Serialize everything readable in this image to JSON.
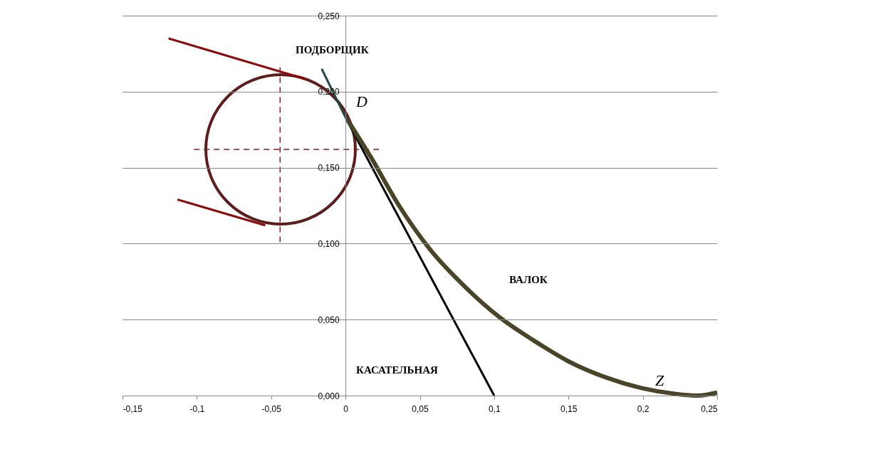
{
  "chart_data": {
    "type": "line",
    "xlim": [
      -0.15,
      0.25
    ],
    "ylim": [
      0,
      0.25
    ],
    "xticks": [
      {
        "value": -0.15,
        "label": "-0,15"
      },
      {
        "value": -0.1,
        "label": "-0,1"
      },
      {
        "value": -0.05,
        "label": "-0,05"
      },
      0,
      {
        "value": 0.05,
        "label": "0,05"
      },
      {
        "value": 0.1,
        "label": "0,1"
      },
      {
        "value": 0.15,
        "label": "0,15"
      },
      {
        "value": 0.2,
        "label": "0,2"
      },
      {
        "value": 0.25,
        "label": "0,25"
      }
    ],
    "yticks": [
      {
        "value": 0,
        "label": "0,000"
      },
      {
        "value": 0.05,
        "label": "0,050"
      },
      {
        "value": 0.1,
        "label": "0,100"
      },
      {
        "value": 0.15,
        "label": "0,150"
      },
      {
        "value": 0.2,
        "label": "0,200"
      },
      {
        "value": 0.25,
        "label": "0,250"
      }
    ],
    "grid": "y",
    "series": [
      {
        "color": "#8b0a0a",
        "x": [
          -0.119,
          -0.026
        ],
        "values": [
          0.235,
          0.208
        ]
      },
      {
        "color": "#8b0a0a",
        "x": [
          -0.113,
          -0.054
        ],
        "values": [
          0.129,
          0.112
        ]
      },
      {
        "color": "#8b1a1a",
        "line_style": "dashed",
        "x": [
          -0.102,
          0.023
        ],
        "values": [
          0.162,
          0.162
        ]
      },
      {
        "color": "#8b1a1a",
        "line_style": "dashed",
        "x": [
          -0.044,
          -0.044
        ],
        "values": [
          0.216,
          0.101
        ]
      },
      {
        "color": "#000000",
        "x": [
          0.001,
          0.1
        ],
        "values": [
          0.181,
          0
        ]
      },
      {
        "color": "#4a4428",
        "x": [
          0.001,
          0.017,
          0.036,
          0.057,
          0.081,
          0.103,
          0.127,
          0.151,
          0.175,
          0.199,
          0.223,
          0.237,
          0.25
        ],
        "values": [
          0.182,
          0.157,
          0.125,
          0.096,
          0.071,
          0.052,
          0.036,
          0.022,
          0.012,
          0.005,
          0.001,
          0,
          0.002
        ]
      },
      {
        "color": "#1e4a45",
        "x": [
          -0.016,
          0.001
        ],
        "values": [
          0.215,
          0.181
        ]
      }
    ],
    "annotations": [
      "ПОДБОРЩИК",
      "D",
      "ВАЛОК",
      "КАСАТЕЛЬНАЯ",
      "Z"
    ]
  }
}
